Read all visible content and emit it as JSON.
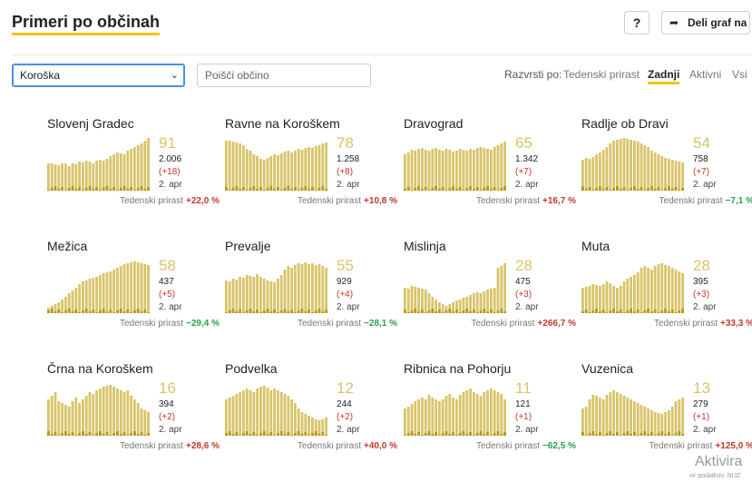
{
  "header": {
    "title": "Primeri po občinah",
    "help_label": "?",
    "share_label": "Deli graf na"
  },
  "filters": {
    "region_selected": "Koroška",
    "search_placeholder": "Poišči občino"
  },
  "sort": {
    "label": "Razvrsti po:",
    "options": [
      "Tedenski prirast",
      "Zadnji",
      "Aktivni",
      "Vsi"
    ],
    "active": "Zadnji"
  },
  "colors": {
    "bar": "#d8c46a",
    "bar_recent": "#b3991c",
    "accent": "#f4c400",
    "positive": "#c0392b",
    "negative": "#27a04a"
  },
  "growth_label": "Tedenski prirast",
  "cards": [
    {
      "name": "Slovenj Gradec",
      "big": "91",
      "total": "2.006",
      "delta": "(+18)",
      "date": "2. apr",
      "growth": "+22,0 %",
      "trend": "pos",
      "bars": [
        30,
        30,
        29,
        28,
        30,
        30,
        27,
        30,
        29,
        32,
        31,
        33,
        32,
        30,
        33,
        34,
        33,
        35,
        38,
        40,
        42,
        41,
        40,
        44,
        46,
        48,
        50,
        52,
        55,
        58
      ]
    },
    {
      "name": "Ravne na Koroškem",
      "big": "78",
      "total": "1.258",
      "delta": "(+8)",
      "date": "2. apr",
      "growth": "+10,8 %",
      "trend": "pos",
      "bars": [
        55,
        55,
        54,
        53,
        52,
        50,
        46,
        44,
        40,
        38,
        35,
        34,
        36,
        38,
        40,
        39,
        41,
        43,
        44,
        42,
        44,
        46,
        45,
        47,
        48,
        47,
        49,
        50,
        52,
        53
      ]
    },
    {
      "name": "Dravograd",
      "big": "65",
      "total": "1.342",
      "delta": "(+7)",
      "date": "2. apr",
      "growth": "+16,7 %",
      "trend": "pos",
      "bars": [
        40,
        42,
        45,
        44,
        46,
        47,
        45,
        44,
        46,
        47,
        45,
        44,
        46,
        45,
        43,
        44,
        46,
        45,
        44,
        46,
        45,
        47,
        48,
        47,
        46,
        45,
        48,
        50,
        52,
        54
      ]
    },
    {
      "name": "Radlje ob Dravi",
      "big": "54",
      "total": "758",
      "delta": "(+7)",
      "date": "2. apr",
      "growth": "−7,1 %",
      "trend": "neg",
      "bars": [
        34,
        36,
        35,
        37,
        40,
        42,
        45,
        48,
        52,
        55,
        56,
        57,
        58,
        57,
        56,
        55,
        54,
        52,
        50,
        48,
        44,
        42,
        40,
        38,
        36,
        35,
        34,
        33,
        32,
        31
      ]
    },
    {
      "name": "Mežica",
      "big": "58",
      "total": "437",
      "delta": "(+5)",
      "date": "2. apr",
      "growth": "−29,4 %",
      "trend": "neg",
      "bars": [
        6,
        8,
        10,
        12,
        15,
        18,
        22,
        25,
        28,
        32,
        35,
        36,
        38,
        39,
        40,
        42,
        44,
        45,
        46,
        48,
        50,
        52,
        54,
        55,
        56,
        57,
        56,
        55,
        54,
        53
      ]
    },
    {
      "name": "Prevalje",
      "big": "55",
      "total": "929",
      "delta": "(+4)",
      "date": "2. apr",
      "growth": "−28,1 %",
      "trend": "neg",
      "bars": [
        36,
        35,
        38,
        37,
        40,
        39,
        42,
        41,
        40,
        43,
        40,
        38,
        36,
        35,
        34,
        38,
        42,
        48,
        52,
        50,
        53,
        55,
        54,
        56,
        54,
        55,
        53,
        54,
        52,
        50
      ]
    },
    {
      "name": "Mislinja",
      "big": "28",
      "total": "475",
      "delta": "(+3)",
      "date": "2. apr",
      "growth": "+266,7 %",
      "trend": "pos",
      "bars": [
        28,
        27,
        30,
        29,
        28,
        27,
        26,
        22,
        18,
        15,
        12,
        10,
        8,
        10,
        12,
        14,
        15,
        17,
        18,
        20,
        22,
        23,
        22,
        24,
        26,
        27,
        28,
        50,
        52,
        55
      ]
    },
    {
      "name": "Muta",
      "big": "28",
      "total": "395",
      "delta": "(+3)",
      "date": "2. apr",
      "growth": "+33,3 %",
      "trend": "pos",
      "bars": [
        28,
        29,
        30,
        32,
        31,
        30,
        32,
        35,
        33,
        30,
        28,
        30,
        35,
        38,
        40,
        42,
        45,
        50,
        52,
        50,
        48,
        52,
        54,
        55,
        53,
        52,
        50,
        48,
        46,
        44
      ]
    },
    {
      "name": "Črna na Koroškem",
      "big": "16",
      "total": "394",
      "delta": "(+2)",
      "date": "2. apr",
      "growth": "+28,6 %",
      "trend": "pos",
      "bars": [
        40,
        44,
        48,
        38,
        36,
        34,
        32,
        38,
        42,
        36,
        40,
        44,
        48,
        46,
        50,
        52,
        54,
        55,
        56,
        54,
        52,
        50,
        48,
        50,
        44,
        40,
        36,
        30,
        28,
        26
      ]
    },
    {
      "name": "Podvelka",
      "big": "12",
      "total": "244",
      "delta": "(+2)",
      "date": "2. apr",
      "growth": "+40,0 %",
      "trend": "pos",
      "bars": [
        40,
        42,
        44,
        46,
        48,
        50,
        52,
        50,
        48,
        52,
        54,
        55,
        53,
        50,
        52,
        50,
        48,
        46,
        44,
        40,
        36,
        30,
        26,
        24,
        22,
        20,
        18,
        17,
        18,
        20
      ]
    },
    {
      "name": "Ribnica na Pohorju",
      "big": "11",
      "total": "121",
      "delta": "(+1)",
      "date": "2. apr",
      "growth": "−62,5 %",
      "trend": "neg",
      "bars": [
        30,
        32,
        35,
        38,
        40,
        42,
        40,
        45,
        42,
        40,
        38,
        40,
        44,
        46,
        42,
        40,
        45,
        48,
        50,
        52,
        48,
        46,
        44,
        48,
        50,
        52,
        50,
        48,
        46,
        40
      ]
    },
    {
      "name": "Vuzenica",
      "big": "13",
      "total": "279",
      "delta": "(+1)",
      "date": "2. apr",
      "growth": "+125,0 %",
      "trend": "pos",
      "bars": [
        30,
        32,
        40,
        45,
        44,
        42,
        40,
        45,
        48,
        50,
        48,
        46,
        44,
        42,
        40,
        38,
        36,
        34,
        32,
        30,
        28,
        26,
        25,
        24,
        26,
        28,
        32,
        38,
        40,
        42
      ]
    }
  ],
  "watermark": {
    "text": "Aktivira",
    "subtext": "vir podatkov: NIJZ"
  }
}
